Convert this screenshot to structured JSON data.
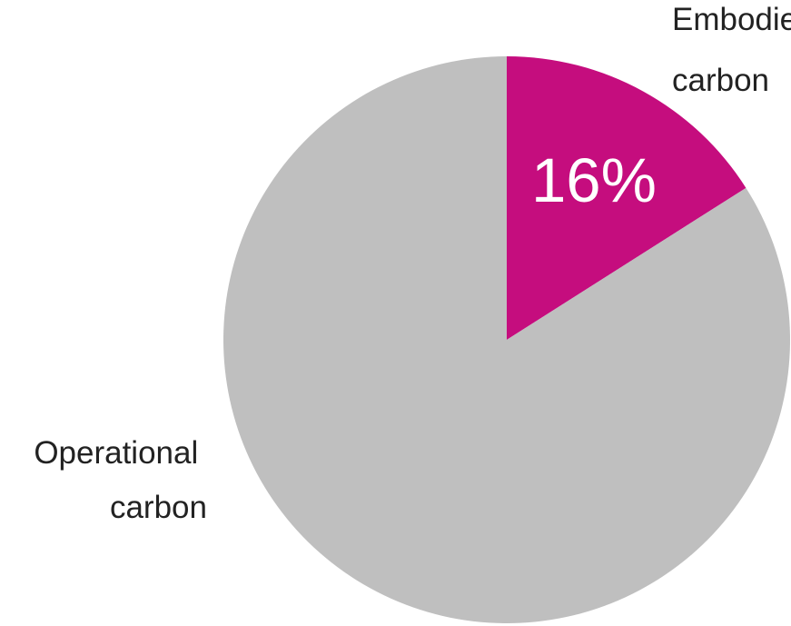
{
  "chart_data": {
    "type": "pie",
    "slices": [
      {
        "label_lines": [
          "Embodied",
          "carbon"
        ],
        "value": 16,
        "value_label": "16%",
        "color": "#C50D7E"
      },
      {
        "label_lines": [
          "Operational",
          "carbon"
        ],
        "value": 84,
        "value_label": "",
        "color": "#BFBFBF"
      }
    ],
    "start_angle": "12 o'clock",
    "direction": "clockwise",
    "legend": "none"
  }
}
